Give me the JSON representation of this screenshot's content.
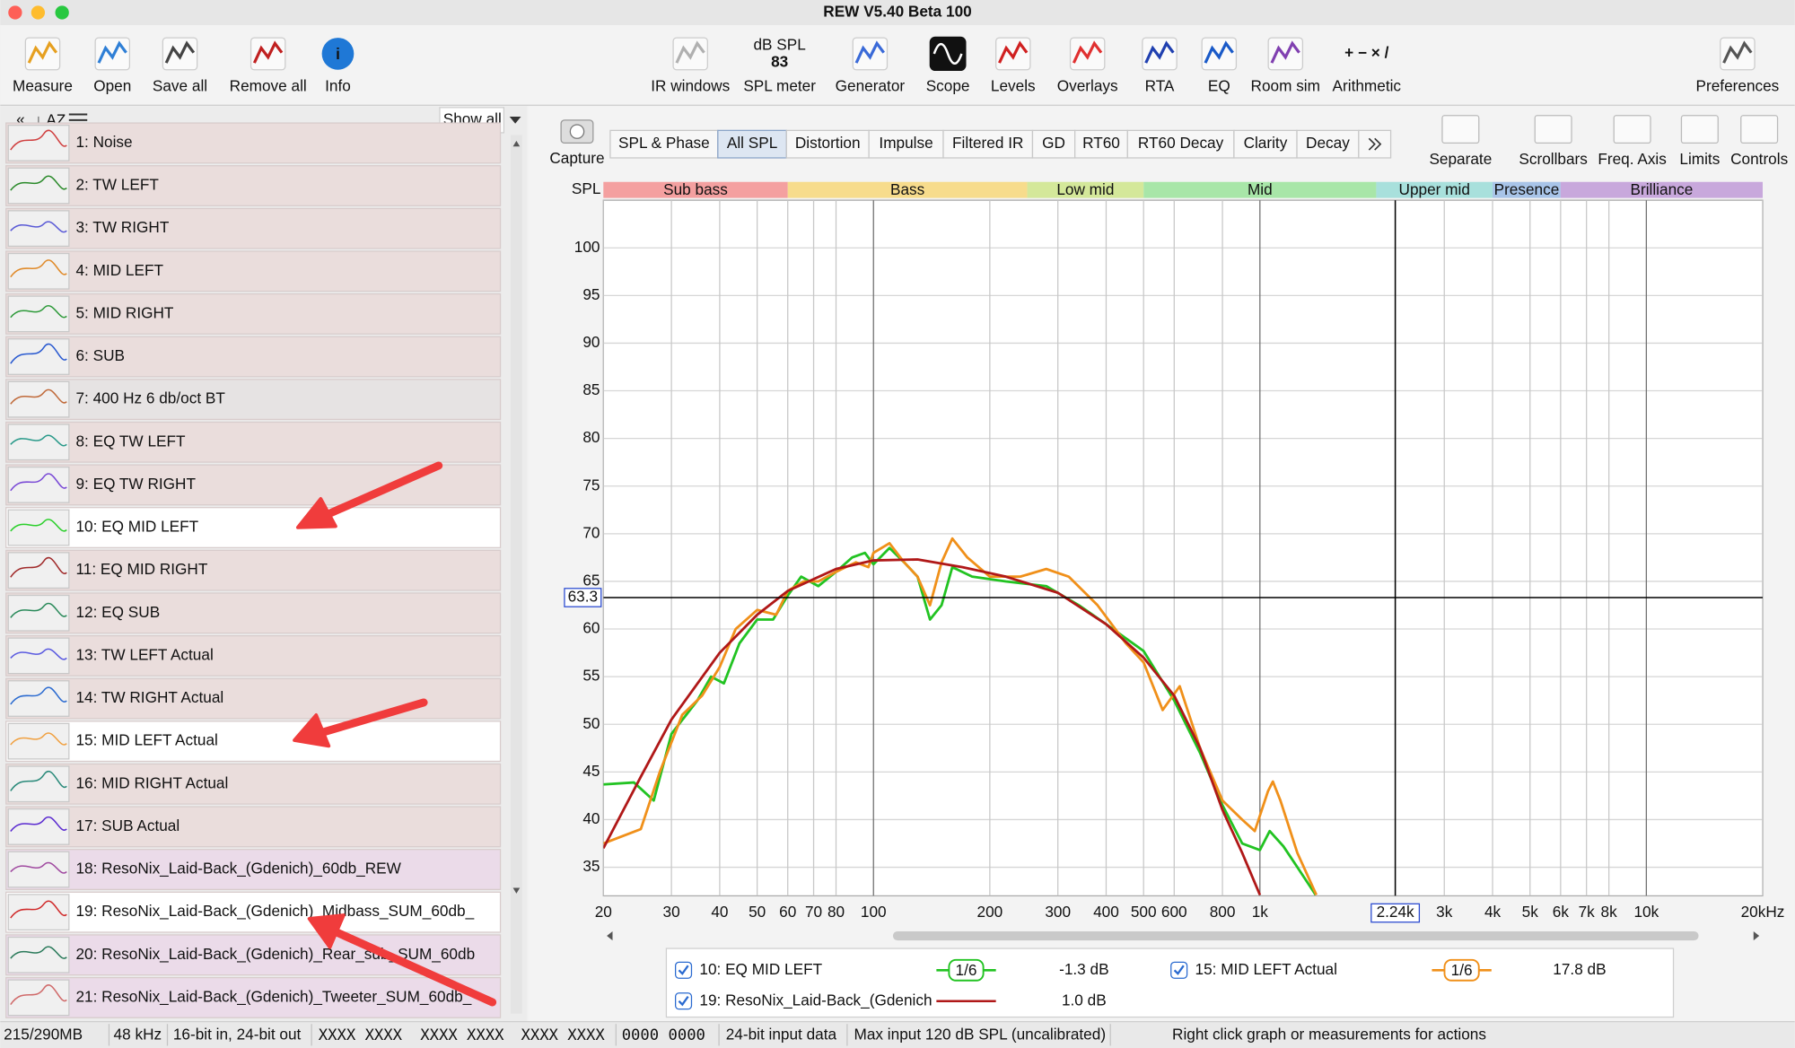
{
  "window_title": "REW V5.40 Beta 100",
  "toolbar": [
    {
      "label": "Measure",
      "enabled": true
    },
    {
      "label": "Open",
      "enabled": true
    },
    {
      "label": "Save all",
      "enabled": true
    },
    {
      "label": "Remove all",
      "enabled": true
    },
    {
      "label": "Info",
      "enabled": true
    },
    {
      "label": "IR windows",
      "enabled": false
    },
    {
      "label": "SPL meter",
      "enabled": true
    },
    {
      "label": "Generator",
      "enabled": true
    },
    {
      "label": "Scope",
      "enabled": true
    },
    {
      "label": "Levels",
      "enabled": true
    },
    {
      "label": "Overlays",
      "enabled": true
    },
    {
      "label": "RTA",
      "enabled": true
    },
    {
      "label": "EQ",
      "enabled": true
    },
    {
      "label": "Room sim",
      "enabled": true
    },
    {
      "label": "Arithmetic",
      "enabled": true
    },
    {
      "label": "Preferences",
      "enabled": true
    }
  ],
  "spl_meter": {
    "unit": "dB SPL",
    "value": 83
  },
  "sidebar": {
    "filter": "Show all",
    "measurements": [
      {
        "label": "1: Noise",
        "text_color": "#8a8a8a",
        "background": "#eadddc",
        "trace": "#d04040"
      },
      {
        "label": "2: TW LEFT",
        "text_color": "#2525d0",
        "background": "#eadddc",
        "trace": "#2a8a2a"
      },
      {
        "label": "3: TW RIGHT",
        "text_color": "#2525d0",
        "background": "#eadddc",
        "trace": "#5a5ad6"
      },
      {
        "label": "4: MID LEFT",
        "text_color": "#2525d0",
        "background": "#eadddc",
        "trace": "#e08a2a"
      },
      {
        "label": "5: MID RIGHT",
        "text_color": "#2525d0",
        "background": "#eadddc",
        "trace": "#2e9a3a"
      },
      {
        "label": "6: SUB",
        "text_color": "#2525d0",
        "background": "#eadddc",
        "trace": "#2a5ad0"
      },
      {
        "label": "7: 400 Hz 6 db/oct BT",
        "text_color": "#7d7d7d",
        "background": "#e6e3e3",
        "trace": "#c06a3a"
      },
      {
        "label": "8: EQ TW LEFT",
        "text_color": "#7d7d7d",
        "background": "#eadddc",
        "trace": "#2a9a8a"
      },
      {
        "label": "9: EQ TW RIGHT",
        "text_color": "#7d7d7d",
        "background": "#eadddc",
        "trace": "#7a4ad6"
      },
      {
        "label": "10: EQ MID LEFT",
        "text_color": "#000000",
        "background": "#ffffff",
        "trace": "#2acf2a"
      },
      {
        "label": "11: EQ MID RIGHT",
        "text_color": "#7d7d7d",
        "background": "#eadddc",
        "trace": "#a02a2a"
      },
      {
        "label": "12: EQ SUB",
        "text_color": "#7d7d7d",
        "background": "#eadddc",
        "trace": "#2a8a5a"
      },
      {
        "label": "13: TW LEFT Actual",
        "text_color": "#7d7d7d",
        "background": "#eadddc",
        "trace": "#5a5ae0"
      },
      {
        "label": "14: TW RIGHT Actual",
        "text_color": "#7d7d7d",
        "background": "#eadddc",
        "trace": "#2a6ad0"
      },
      {
        "label": "15: MID LEFT Actual",
        "text_color": "#000000",
        "background": "#ffffff",
        "trace": "#f0a040"
      },
      {
        "label": "16: MID RIGHT Actual",
        "text_color": "#7d7d7d",
        "background": "#eadddc",
        "trace": "#2a8a7a"
      },
      {
        "label": "17: SUB Actual",
        "text_color": "#7d7d7d",
        "background": "#eadddc",
        "trace": "#5a2ad0"
      },
      {
        "label": "18: ResoNix_Laid-Back_(Gdenich)_60db_REW",
        "text_color": "#2525d0",
        "background": "#ebdbe9",
        "trace": "#a04aa0"
      },
      {
        "label": "19: ResoNix_Laid-Back_(Gdenich)_Midbass_SUM_60db_",
        "text_color": "#2525d0",
        "background": "#ffffff",
        "trace": "#d02a2a"
      },
      {
        "label": "20: ResoNix_Laid-Back_(Gdenich)_Rear_sub_SUM_60db",
        "text_color": "#2525d0",
        "background": "#ebdbe9",
        "trace": "#2a7a5a"
      },
      {
        "label": "21: ResoNix_Laid-Back_(Gdenich)_Tweeter_SUM_60db_",
        "text_color": "#2525d0",
        "background": "#ebdbe9",
        "trace": "#d06a6a"
      }
    ]
  },
  "capture": "Capture",
  "tabs": [
    "SPL & Phase",
    "All SPL",
    "Distortion",
    "Impulse",
    "Filtered IR",
    "GD",
    "RT60",
    "RT60 Decay",
    "Clarity",
    "Decay"
  ],
  "selected_tab": 1,
  "graph_tools": [
    "Separate",
    "Scrollbars",
    "Freq. Axis",
    "Limits",
    "Controls"
  ],
  "chart_data": {
    "type": "line",
    "y_label": "SPL",
    "xscale": "log",
    "xlim": [
      20,
      20000
    ],
    "ylim": [
      32,
      105
    ],
    "grid": true,
    "yticks": [
      35,
      40,
      45,
      50,
      55,
      60,
      65,
      70,
      75,
      80,
      85,
      90,
      95,
      100
    ],
    "xticks": [
      20,
      30,
      40,
      50,
      60,
      70,
      80,
      100,
      200,
      300,
      400,
      500,
      600,
      800,
      {
        "value": 1000,
        "label": "1k"
      },
      {
        "value": 3000,
        "label": "3k"
      },
      {
        "value": 4000,
        "label": "4k"
      },
      {
        "value": 5000,
        "label": "5k"
      },
      {
        "value": 6000,
        "label": "6k"
      },
      {
        "value": 7000,
        "label": "7k"
      },
      {
        "value": 8000,
        "label": "8k"
      },
      {
        "value": 10000,
        "label": "10k"
      },
      {
        "value": 20000,
        "label": "20kHz"
      }
    ],
    "bands": [
      {
        "label": "Sub bass",
        "from": 20,
        "to": 60,
        "color": "#f4a0a0"
      },
      {
        "label": "Bass",
        "from": 60,
        "to": 250,
        "color": "#f7dc8c"
      },
      {
        "label": "Low mid",
        "from": 250,
        "to": 500,
        "color": "#d4e89a"
      },
      {
        "label": "Mid",
        "from": 500,
        "to": 2000,
        "color": "#a8e6a8"
      },
      {
        "label": "Upper mid",
        "from": 2000,
        "to": 4000,
        "color": "#a8e0dc"
      },
      {
        "label": "Presence",
        "from": 4000,
        "to": 6000,
        "color": "#a8c4e8"
      },
      {
        "label": "Brilliance",
        "from": 6000,
        "to": 20000,
        "color": "#c8a8dc"
      }
    ],
    "cursor": {
      "x": {
        "value": 2240,
        "label": "2.24k"
      },
      "y": 63.3
    },
    "series": [
      {
        "name": "10: EQ MID LEFT",
        "color": "#22c322",
        "smoothing": "1/6",
        "offset": "-1.3 dB",
        "x": [
          20,
          24,
          27,
          30,
          35,
          38,
          41,
          45,
          50,
          55,
          60,
          65,
          72,
          80,
          88,
          95,
          100,
          110,
          120,
          130,
          140,
          150,
          160,
          180,
          220,
          280,
          340,
          400,
          500,
          600,
          700,
          800,
          900,
          1000,
          1060,
          1150,
          1250,
          1394
        ],
        "values": [
          43.7,
          43.9,
          42,
          49,
          52.5,
          55,
          54.3,
          58.5,
          61,
          61,
          63.5,
          65.5,
          64.5,
          66,
          67.5,
          68,
          66.8,
          68.5,
          67,
          65.5,
          61,
          62.5,
          66.5,
          65.5,
          65,
          64.5,
          62.5,
          60.5,
          57.7,
          52.5,
          47,
          41.5,
          37.5,
          36.8,
          38.8,
          37.2,
          35,
          32.1
        ]
      },
      {
        "name": "15: MID LEFT Actual",
        "color": "#f0901a",
        "smoothing": "1/6",
        "offset": "17.8 dB",
        "x": [
          20,
          25,
          28,
          32,
          36,
          40,
          44,
          50,
          56,
          60,
          66,
          72,
          80,
          90,
          97,
          100,
          110,
          120,
          130,
          140,
          150,
          160,
          175,
          200,
          240,
          280,
          320,
          380,
          450,
          500,
          560,
          620,
          700,
          800,
          900,
          970,
          1050,
          1080,
          1130,
          1250,
          1400
        ],
        "values": [
          37.5,
          39,
          45,
          51,
          53,
          56,
          60,
          62,
          61.5,
          64,
          65,
          65,
          66,
          67,
          66.5,
          68,
          69,
          67,
          65.5,
          62.5,
          67,
          69.5,
          67.5,
          65.5,
          65.5,
          66.3,
          65.5,
          62.5,
          58.5,
          56.5,
          51.5,
          54,
          47.5,
          42,
          40,
          38.8,
          43,
          44,
          42,
          36.5,
          32.1
        ]
      },
      {
        "name": "19: ResoNix_Laid-Back_(Gdenich",
        "color": "#b01818",
        "offset": "1.0 dB",
        "x": [
          20,
          25,
          30,
          40,
          50,
          60,
          80,
          100,
          130,
          170,
          220,
          300,
          400,
          500,
          600,
          700,
          800,
          900,
          1000
        ],
        "values": [
          37,
          44.5,
          50.5,
          57.5,
          61.5,
          64,
          66.3,
          67.2,
          67.3,
          66.5,
          65.5,
          63.8,
          60.5,
          57,
          53,
          47.5,
          41,
          36.5,
          32.1
        ]
      }
    ]
  },
  "status_bar": [
    "215/290MB",
    "48 kHz",
    "16-bit in, 24-bit out",
    "XXXX XXXX",
    "XXXX XXXX",
    "XXXX XXXX",
    "0000 0000",
    "24-bit input data",
    "Max input 120 dB SPL (uncalibrated)",
    "Right click graph or measurements for actions"
  ]
}
